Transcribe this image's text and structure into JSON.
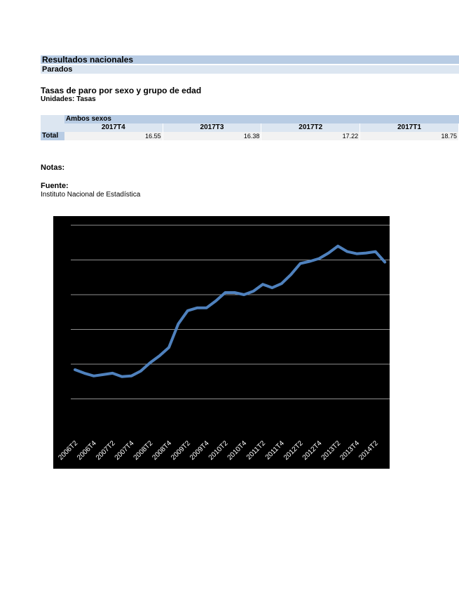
{
  "header": {
    "title": "Resultados nacionales",
    "subtitle": "Parados"
  },
  "section": {
    "title": "Tasas de paro por sexo y grupo de edad",
    "units": "Unidades: Tasas"
  },
  "table": {
    "group": "Ambos sexos",
    "columns": [
      "2017T4",
      "2017T3",
      "2017T2",
      "2017T1"
    ],
    "row_label": "Total",
    "values": [
      "16.55",
      "16.38",
      "17.22",
      "18.75"
    ]
  },
  "notes_label": "Notas:",
  "source": {
    "label": "Fuente:",
    "value": "Instituto Nacional de Estadística"
  },
  "colors": {
    "header_band": "#b8cce4",
    "sub_band": "#dce6f1",
    "line": "#4f81bd",
    "chart_bg": "#000000",
    "grid": "#bfbfbf",
    "tick_text": "#ffffff"
  },
  "chart_data": {
    "type": "line",
    "title": "",
    "xlabel": "",
    "ylabel": "",
    "ylim": [
      0,
      30
    ],
    "grid": true,
    "legend": "none",
    "x_tick_labels": [
      "2006T2",
      "2006T4",
      "2007T2",
      "2007T4",
      "2008T2",
      "2008T4",
      "2009T2",
      "2009T4",
      "2010T2",
      "2010T4",
      "2011T2",
      "2011T4",
      "2012T2",
      "2012T4",
      "2013T2",
      "2013T4",
      "2014T2"
    ],
    "x": [
      "2006T2",
      "2006T3",
      "2006T4",
      "2007T1",
      "2007T2",
      "2007T3",
      "2007T4",
      "2008T1",
      "2008T2",
      "2008T3",
      "2008T4",
      "2009T1",
      "2009T2",
      "2009T3",
      "2009T4",
      "2010T1",
      "2010T2",
      "2010T3",
      "2010T4",
      "2011T1",
      "2011T2",
      "2011T3",
      "2011T4",
      "2012T1",
      "2012T2",
      "2012T3",
      "2012T4",
      "2013T1",
      "2013T2",
      "2013T3",
      "2013T4",
      "2014T1",
      "2014T2",
      "2014T3"
    ],
    "series": [
      {
        "values": [
          9.2,
          8.7,
          8.3,
          8.5,
          8.7,
          8.2,
          8.3,
          9.0,
          10.2,
          11.2,
          12.4,
          15.8,
          17.7,
          18.1,
          18.1,
          19.1,
          20.3,
          20.3,
          20.0,
          20.5,
          21.5,
          21.0,
          21.6,
          22.9,
          24.5,
          24.8,
          25.2,
          26.0,
          27.0,
          26.2,
          25.9,
          26.0,
          26.2,
          24.7
        ]
      }
    ]
  }
}
